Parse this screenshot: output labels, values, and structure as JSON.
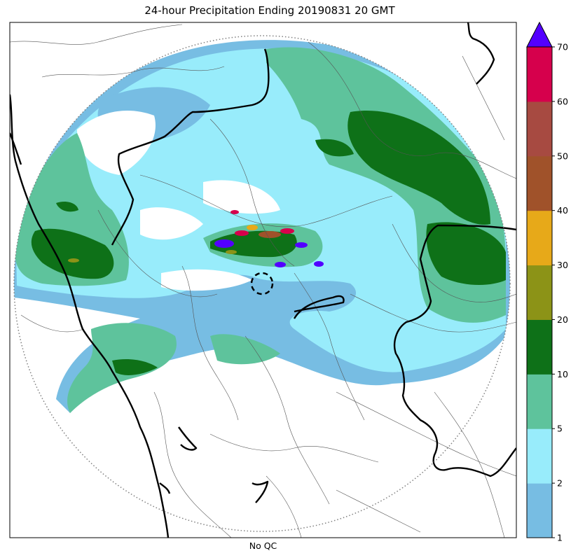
{
  "figure": {
    "title": "24-hour Precipitation Ending 20190831 20 GMT",
    "xlabel": "No QC"
  },
  "colorbar": {
    "ticks": [
      "1",
      "2",
      "5",
      "10",
      "20",
      "30",
      "40",
      "50",
      "60",
      "70"
    ],
    "colors": [
      "#77bde3",
      "#98ecfb",
      "#5ec39c",
      "#0e7118",
      "#8c9317",
      "#e7a919",
      "#a0522a",
      "#a74a41",
      "#d6004c"
    ],
    "extend_color": "#5300ff"
  },
  "colors": {
    "radar_range_ring": "#808080",
    "state_border": "#000000",
    "district_border": "#555555"
  }
}
